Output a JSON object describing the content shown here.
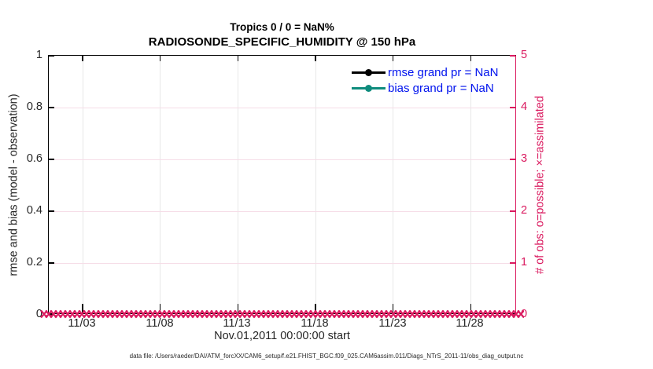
{
  "titles": {
    "line1": "Tropics 0 / 0 = NaN%",
    "line2": "RADIOSONDE_SPECIFIC_HUMIDITY @ 150 hPa"
  },
  "axes": {
    "left": {
      "label": "rmse and bias (model - observation)",
      "ticks": [
        "1",
        "0.8",
        "0.6",
        "0.4",
        "0.2",
        "0"
      ],
      "color": "#262626"
    },
    "right": {
      "label": "# of obs: o=possible; ×=assimilated",
      "ticks": [
        "5",
        "4",
        "3",
        "2",
        "1",
        "0"
      ],
      "color": "#da1a5f"
    },
    "x": {
      "ticks": [
        "11/03",
        "11/08",
        "11/13",
        "11/18",
        "11/23",
        "11/28"
      ],
      "label": "Nov.01,2011 00:00:00 start"
    }
  },
  "legend": [
    {
      "label": "rmse grand pr = NaN",
      "color": "#000000"
    },
    {
      "label": "bias grand pr = NaN",
      "color": "#0e8c7d"
    }
  ],
  "legend_text_color": "#0013ee",
  "footer": "data file: /Users/raeder/DAI/ATM_forcXX/CAM6_setup/f.e21.FHIST_BGC.f09_025.CAM6assim.011/Diags_NTrS_2011-11/obs_diag_output.nc",
  "chart_data": {
    "type": "line",
    "title": "Tropics 0 / 0 = NaN%",
    "subtitle": "RADIOSONDE_SPECIFIC_HUMIDITY @ 150 hPa",
    "xlabel": "Nov.01,2011 00:00:00 start",
    "x_tick_labels": [
      "11/03",
      "11/08",
      "11/13",
      "11/18",
      "11/23",
      "11/28"
    ],
    "x_range": [
      "2011-11-01 00:00:00",
      "2011-12-01 00:00:00"
    ],
    "y_left": {
      "label": "rmse and bias (model - observation)",
      "range": [
        0,
        1
      ],
      "ticks": [
        0,
        0.2,
        0.4,
        0.6,
        0.8,
        1
      ]
    },
    "y_right": {
      "label": "# of obs: o=possible; ×=assimilated",
      "range": [
        0,
        5
      ],
      "ticks": [
        0,
        1,
        2,
        3,
        4,
        5
      ]
    },
    "series": [
      {
        "name": "rmse grand pr",
        "summary_value": "NaN",
        "color": "#000000",
        "marker": "filled-circle",
        "values": "NaN (no data plotted)"
      },
      {
        "name": "bias grand pr",
        "summary_value": "NaN",
        "color": "#0e8c7d",
        "marker": "filled-circle",
        "values": "NaN (no data plotted)"
      },
      {
        "name": "# of obs possible",
        "marker": "o",
        "color": "#da1a5f",
        "constant_value": 0
      },
      {
        "name": "# of obs assimilated",
        "marker": "×",
        "color": "#da1a5f",
        "constant_value": 0
      }
    ],
    "grid": true,
    "legend_position": "top-right-inside",
    "stats": {
      "region": "Tropics",
      "n_possible": 0,
      "n_assimilated": 0,
      "percent": "NaN%"
    }
  },
  "layout_colors": {
    "accent_pink": "#da1a5f",
    "grid_vertical": "#e8e8e8",
    "grid_horizontal": "#f6dde7",
    "axis_black": "#000000"
  }
}
